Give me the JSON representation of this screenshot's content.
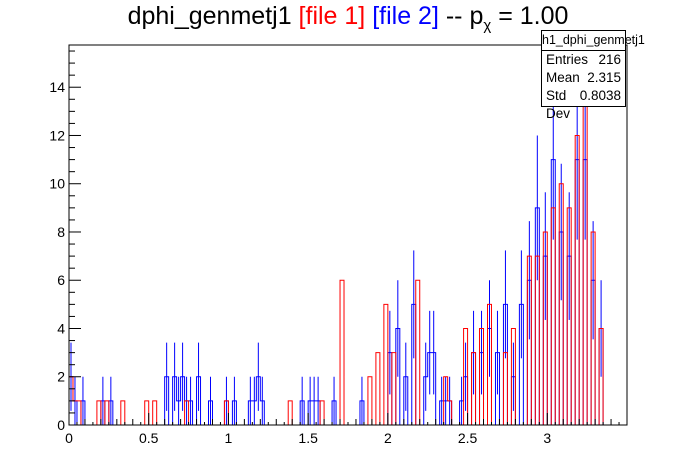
{
  "title": {
    "main": "dphi_genmetj1",
    "file1": "[file 1]",
    "file2": "[file 2]",
    "sep": "--",
    "p": "p",
    "sub": "χ",
    "value": "= 1.00"
  },
  "stats": {
    "name": "h1_dphi_genmetj1",
    "rows": [
      {
        "label": "Entries",
        "value": "216"
      },
      {
        "label": "Mean",
        "value": "2.315"
      },
      {
        "label": "Std Dev",
        "value": "0.8038"
      }
    ]
  },
  "colors": {
    "file1": "#ff0000",
    "file2": "#0000ff",
    "axis": "#000000"
  },
  "chart_data": {
    "type": "bar",
    "style": "step-histogram",
    "xlim": [
      0,
      3.5
    ],
    "ylim": [
      0,
      15.75
    ],
    "xticks": [
      0,
      0.5,
      1,
      1.5,
      2,
      2.5,
      3
    ],
    "xtick_labels": [
      "0",
      "0.5",
      "1",
      "1.5",
      "2",
      "2.5",
      "3"
    ],
    "yticks": [
      0,
      2,
      4,
      6,
      8,
      10,
      12,
      14
    ],
    "ytick_labels": [
      "0",
      "2",
      "4",
      "6",
      "8",
      "10",
      "12",
      "14"
    ],
    "bin_width": 0.025,
    "series": [
      {
        "name": "[file 1]",
        "color": "#ff0000",
        "error_bars": false,
        "values": [
          2,
          1,
          1,
          0,
          0,
          0,
          0,
          1,
          0,
          1,
          0,
          0,
          0,
          1,
          0,
          0,
          0,
          0,
          0,
          1,
          0,
          1,
          0,
          0,
          0,
          0,
          0,
          0,
          0,
          1,
          0,
          0,
          0,
          0,
          0,
          0,
          0,
          0,
          0,
          1,
          0,
          0,
          0,
          0,
          0,
          0,
          0,
          0,
          0,
          0,
          0,
          0,
          0,
          0,
          0,
          1,
          0,
          0,
          0,
          0,
          0,
          0,
          0,
          1,
          0,
          0,
          0,
          0,
          6,
          0,
          0,
          0,
          0,
          0,
          0,
          2,
          0,
          3,
          0,
          5,
          0,
          3,
          0,
          0,
          0,
          0,
          0,
          6,
          0,
          0,
          0,
          0,
          0,
          0,
          2,
          1,
          0,
          0,
          0,
          4,
          0,
          3,
          0,
          4,
          0,
          5,
          0,
          0,
          0,
          3,
          0,
          4,
          0,
          0,
          0,
          7,
          0,
          7,
          0,
          8,
          0,
          9,
          0,
          10,
          0,
          9,
          0,
          12,
          0,
          15,
          0,
          8,
          0,
          4,
          0,
          0,
          0,
          0,
          0,
          0
        ]
      },
      {
        "name": "[file 2]",
        "color": "#0000ff",
        "error_bars": true,
        "values": [
          2,
          1,
          0,
          1,
          0,
          0,
          0,
          0,
          1,
          0,
          1,
          0,
          0,
          0,
          0,
          0,
          0,
          0,
          0,
          0,
          0,
          0,
          0,
          0,
          2,
          0,
          2,
          1,
          2,
          1,
          1,
          0,
          2,
          0,
          0,
          1,
          0,
          0,
          0,
          1,
          0,
          1,
          0,
          0,
          0,
          1,
          1,
          2,
          1,
          0,
          0,
          0,
          0,
          0,
          0,
          0,
          0,
          0,
          1,
          0,
          1,
          1,
          1,
          0,
          0,
          0,
          1,
          0,
          0,
          0,
          0,
          0,
          0,
          1,
          0,
          0,
          0,
          0,
          0,
          0,
          3,
          0,
          4,
          0,
          2,
          0,
          5,
          0,
          0,
          2,
          3,
          3,
          0,
          1,
          1,
          1,
          0,
          0,
          1,
          2,
          0,
          3,
          0,
          3,
          0,
          4,
          0,
          3,
          0,
          5,
          0,
          2,
          0,
          5,
          0,
          6,
          0,
          9,
          0,
          7,
          0,
          11,
          0,
          8,
          0,
          7,
          0,
          11,
          0,
          11,
          0,
          6,
          0,
          4,
          0,
          0,
          0,
          0,
          0,
          0
        ]
      }
    ]
  }
}
